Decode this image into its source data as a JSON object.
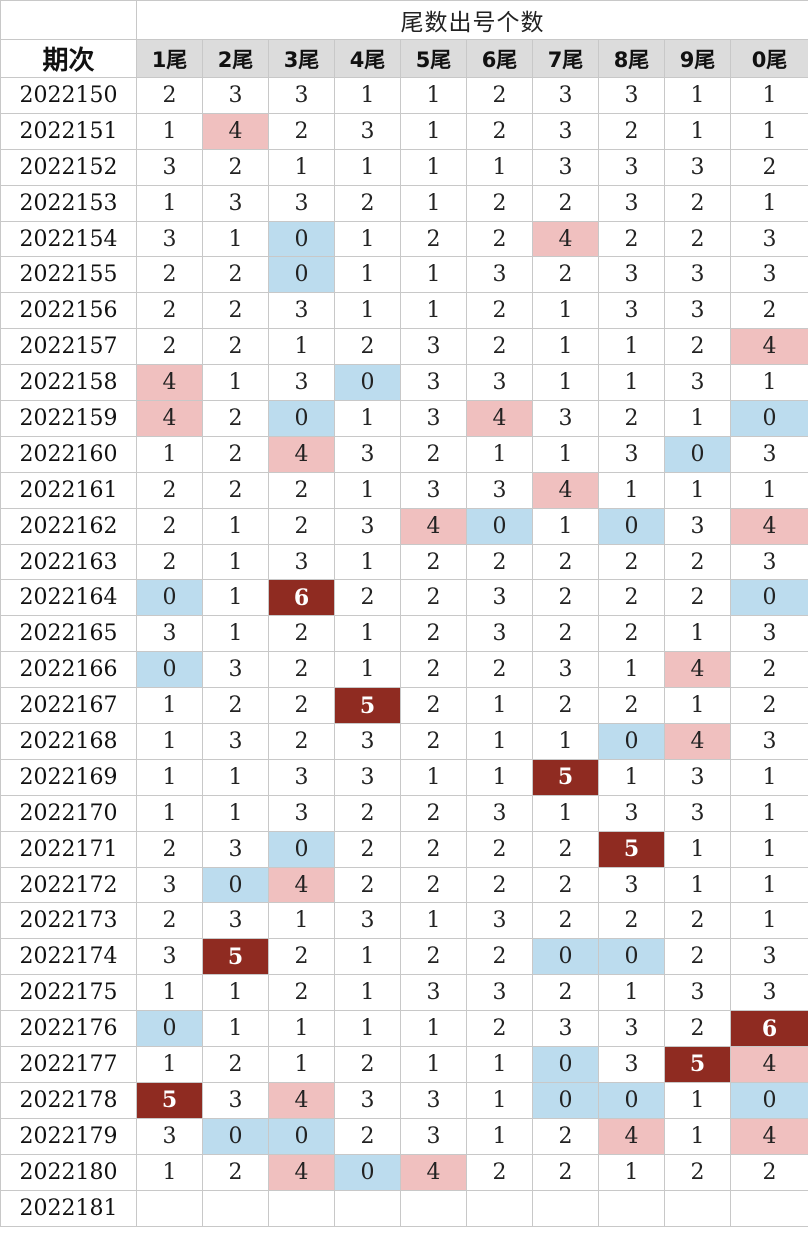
{
  "title": "尾数出号个数",
  "period_header": "期次",
  "columns": [
    "1尾",
    "2尾",
    "3尾",
    "4尾",
    "5尾",
    "6尾",
    "7尾",
    "8尾",
    "9尾",
    "0尾"
  ],
  "colors": {
    "zero": "#bcdcee",
    "four": "#f0c0bf",
    "hot": "#8f2b21",
    "header_bg": "#dcdcdc"
  },
  "rows": [
    {
      "period": "2022150",
      "values": [
        "2",
        "3",
        "3",
        "1",
        "1",
        "2",
        "3",
        "3",
        "1",
        "1"
      ]
    },
    {
      "period": "2022151",
      "values": [
        "1",
        "4",
        "2",
        "3",
        "1",
        "2",
        "3",
        "2",
        "1",
        "1"
      ]
    },
    {
      "period": "2022152",
      "values": [
        "3",
        "2",
        "1",
        "1",
        "1",
        "1",
        "3",
        "3",
        "3",
        "2"
      ]
    },
    {
      "period": "2022153",
      "values": [
        "1",
        "3",
        "3",
        "2",
        "1",
        "2",
        "2",
        "3",
        "2",
        "1"
      ]
    },
    {
      "period": "2022154",
      "values": [
        "3",
        "1",
        "0",
        "1",
        "2",
        "2",
        "4",
        "2",
        "2",
        "3"
      ]
    },
    {
      "period": "2022155",
      "values": [
        "2",
        "2",
        "0",
        "1",
        "1",
        "3",
        "2",
        "3",
        "3",
        "3"
      ]
    },
    {
      "period": "2022156",
      "values": [
        "2",
        "2",
        "3",
        "1",
        "1",
        "2",
        "1",
        "3",
        "3",
        "2"
      ]
    },
    {
      "period": "2022157",
      "values": [
        "2",
        "2",
        "1",
        "2",
        "3",
        "2",
        "1",
        "1",
        "2",
        "4"
      ]
    },
    {
      "period": "2022158",
      "values": [
        "4",
        "1",
        "3",
        "0",
        "3",
        "3",
        "1",
        "1",
        "3",
        "1"
      ]
    },
    {
      "period": "2022159",
      "values": [
        "4",
        "2",
        "0",
        "1",
        "3",
        "4",
        "3",
        "2",
        "1",
        "0"
      ]
    },
    {
      "period": "2022160",
      "values": [
        "1",
        "2",
        "4",
        "3",
        "2",
        "1",
        "1",
        "3",
        "0",
        "3"
      ]
    },
    {
      "period": "2022161",
      "values": [
        "2",
        "2",
        "2",
        "1",
        "3",
        "3",
        "4",
        "1",
        "1",
        "1"
      ]
    },
    {
      "period": "2022162",
      "values": [
        "2",
        "1",
        "2",
        "3",
        "4",
        "0",
        "1",
        "0",
        "3",
        "4"
      ]
    },
    {
      "period": "2022163",
      "values": [
        "2",
        "1",
        "3",
        "1",
        "2",
        "2",
        "2",
        "2",
        "2",
        "3"
      ]
    },
    {
      "period": "2022164",
      "values": [
        "0",
        "1",
        "6",
        "2",
        "2",
        "3",
        "2",
        "2",
        "2",
        "0"
      ]
    },
    {
      "period": "2022165",
      "values": [
        "3",
        "1",
        "2",
        "1",
        "2",
        "3",
        "2",
        "2",
        "1",
        "3"
      ]
    },
    {
      "period": "2022166",
      "values": [
        "0",
        "3",
        "2",
        "1",
        "2",
        "2",
        "3",
        "1",
        "4",
        "2"
      ]
    },
    {
      "period": "2022167",
      "values": [
        "1",
        "2",
        "2",
        "5",
        "2",
        "1",
        "2",
        "2",
        "1",
        "2"
      ]
    },
    {
      "period": "2022168",
      "values": [
        "1",
        "3",
        "2",
        "3",
        "2",
        "1",
        "1",
        "0",
        "4",
        "3"
      ]
    },
    {
      "period": "2022169",
      "values": [
        "1",
        "1",
        "3",
        "3",
        "1",
        "1",
        "5",
        "1",
        "3",
        "1"
      ]
    },
    {
      "period": "2022170",
      "values": [
        "1",
        "1",
        "3",
        "2",
        "2",
        "3",
        "1",
        "3",
        "3",
        "1"
      ]
    },
    {
      "period": "2022171",
      "values": [
        "2",
        "3",
        "0",
        "2",
        "2",
        "2",
        "2",
        "5",
        "1",
        "1"
      ]
    },
    {
      "period": "2022172",
      "values": [
        "3",
        "0",
        "4",
        "2",
        "2",
        "2",
        "2",
        "3",
        "1",
        "1"
      ]
    },
    {
      "period": "2022173",
      "values": [
        "2",
        "3",
        "1",
        "3",
        "1",
        "3",
        "2",
        "2",
        "2",
        "1"
      ]
    },
    {
      "period": "2022174",
      "values": [
        "3",
        "5",
        "2",
        "1",
        "2",
        "2",
        "0",
        "0",
        "2",
        "3"
      ]
    },
    {
      "period": "2022175",
      "values": [
        "1",
        "1",
        "2",
        "1",
        "3",
        "3",
        "2",
        "1",
        "3",
        "3"
      ]
    },
    {
      "period": "2022176",
      "values": [
        "0",
        "1",
        "1",
        "1",
        "1",
        "2",
        "3",
        "3",
        "2",
        "6"
      ]
    },
    {
      "period": "2022177",
      "values": [
        "1",
        "2",
        "1",
        "2",
        "1",
        "1",
        "0",
        "3",
        "5",
        "4"
      ]
    },
    {
      "period": "2022178",
      "values": [
        "5",
        "3",
        "4",
        "3",
        "3",
        "1",
        "0",
        "0",
        "1",
        "0"
      ]
    },
    {
      "period": "2022179",
      "values": [
        "3",
        "0",
        "0",
        "2",
        "3",
        "1",
        "2",
        "4",
        "1",
        "4"
      ]
    },
    {
      "period": "2022180",
      "values": [
        "1",
        "2",
        "4",
        "0",
        "4",
        "2",
        "2",
        "1",
        "2",
        "2"
      ]
    },
    {
      "period": "2022181",
      "values": [
        "",
        "",
        "",
        "",
        "",
        "",
        "",
        "",
        "",
        ""
      ]
    }
  ]
}
